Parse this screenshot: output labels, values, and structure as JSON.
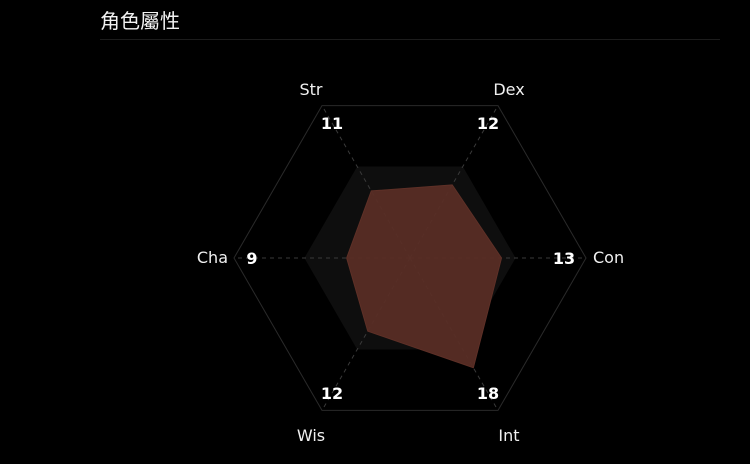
{
  "header": {
    "title": "角色屬性"
  },
  "chart_data": {
    "type": "radar",
    "title": "",
    "categories": [
      "Str",
      "Dex",
      "Con",
      "Int",
      "Wis",
      "Cha"
    ],
    "values": [
      11,
      12,
      13,
      18,
      12,
      9
    ],
    "range": [
      0,
      25
    ],
    "band_level": 15,
    "colors": {
      "fill": "#582d25",
      "band": "#0e0e0e",
      "grid": "#2a2a2a",
      "spoke": "#3a3a3a"
    }
  }
}
